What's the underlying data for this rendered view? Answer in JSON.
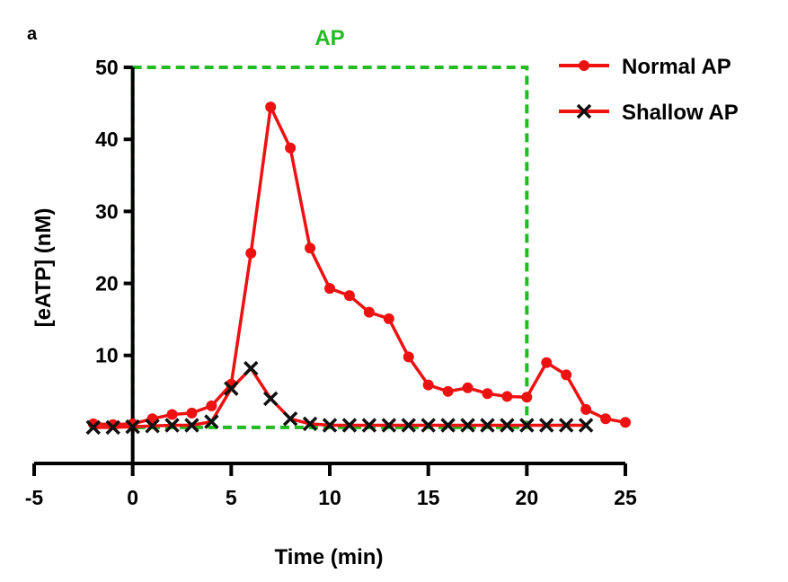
{
  "panel_label": "a",
  "chart_data": {
    "type": "line",
    "title": "",
    "xlabel": "Time (min)",
    "ylabel": "[eATP] (nM)",
    "xlim": [
      -5,
      25
    ],
    "ylim": [
      -5,
      50
    ],
    "xticks": [
      -5,
      0,
      5,
      10,
      15,
      20,
      25
    ],
    "yticks": [
      10,
      20,
      30,
      40,
      50
    ],
    "grid": false,
    "legend_position": "top-right",
    "annotations": [
      {
        "text": "AP",
        "x_range": [
          0,
          20
        ],
        "y_range": [
          0,
          50
        ],
        "style": "dashed-box",
        "color": "#22bb22"
      }
    ],
    "series": [
      {
        "name": "Normal AP",
        "color": "#ee1111",
        "marker": "circle",
        "x": [
          -2,
          -1,
          0,
          1,
          2,
          3,
          4,
          5,
          6,
          7,
          8,
          9,
          10,
          11,
          12,
          13,
          14,
          15,
          16,
          17,
          18,
          19,
          20,
          21,
          22,
          23,
          24,
          25
        ],
        "y": [
          0.5,
          0.4,
          0.5,
          1.2,
          1.8,
          2.0,
          3.0,
          6.0,
          24.2,
          44.5,
          38.8,
          24.9,
          19.3,
          18.3,
          16.0,
          15.1,
          9.8,
          5.9,
          5.0,
          5.5,
          4.7,
          4.3,
          4.2,
          9.0,
          7.3,
          2.5,
          1.2,
          0.7
        ]
      },
      {
        "name": "Shallow AP",
        "color": "#111111",
        "marker": "x",
        "x": [
          -2,
          -1,
          0,
          1,
          2,
          3,
          4,
          5,
          6,
          7,
          8,
          9,
          10,
          11,
          12,
          13,
          14,
          15,
          16,
          17,
          18,
          19,
          20,
          21,
          22,
          23
        ],
        "y": [
          0.0,
          0.0,
          0.1,
          0.2,
          0.3,
          0.3,
          0.8,
          5.4,
          8.2,
          4.0,
          1.2,
          0.5,
          0.3,
          0.3,
          0.3,
          0.3,
          0.3,
          0.3,
          0.3,
          0.3,
          0.3,
          0.3,
          0.3,
          0.3,
          0.3,
          0.3
        ]
      }
    ]
  }
}
